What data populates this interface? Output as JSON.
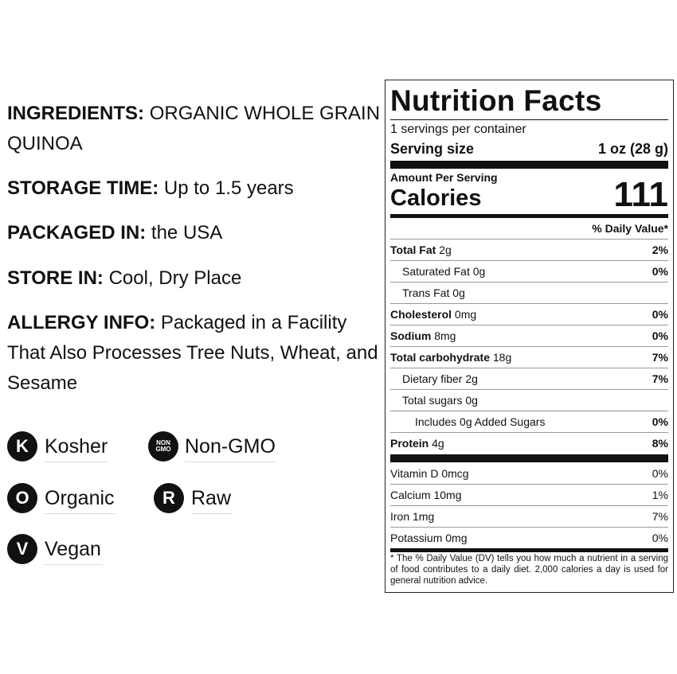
{
  "product_info": {
    "ingredients": {
      "label": "INGREDIENTS:",
      "value": "ORGANIC WHOLE GRAIN QUINOA"
    },
    "storage": {
      "label": "STORAGE TIME:",
      "value": "Up to 1.5 years"
    },
    "packaged": {
      "label": "PACKAGED IN:",
      "value": "the USA"
    },
    "store": {
      "label": "STORE IN:",
      "value": "Cool, Dry Place"
    },
    "allergy": {
      "label": "ALLERGY INFO:",
      "value": "Packaged in a Facility That Also Processes Tree Nuts, Wheat, and Sesame"
    }
  },
  "certifications": [
    {
      "badge": "K",
      "label": "Kosher",
      "icon": "kosher-icon"
    },
    {
      "badge_line1": "NON",
      "badge_line2": "GMO",
      "label": "Non-GMO",
      "icon": "non-gmo-icon"
    },
    {
      "badge": "O",
      "label": "Organic",
      "icon": "organic-icon"
    },
    {
      "badge": "R",
      "label": "Raw",
      "icon": "raw-icon"
    },
    {
      "badge": "V",
      "label": "Vegan",
      "icon": "vegan-icon"
    }
  ],
  "nutrition": {
    "title": "Nutrition Facts",
    "servings_per_container": "1 servings per container",
    "serving_size_label": "Serving size",
    "serving_size_value": "1 oz (28 g)",
    "amount_per_serving": "Amount Per Serving",
    "calories_label": "Calories",
    "calories_value": "111",
    "daily_value_header": "% Daily Value*",
    "rows": [
      {
        "name": "Total Fat",
        "amount": "2g",
        "dv": "2%"
      },
      {
        "name": "Saturated Fat",
        "amount": "0g",
        "dv": "0%"
      },
      {
        "name": "Trans Fat",
        "amount": "0g",
        "dv": ""
      },
      {
        "name": "Cholesterol",
        "amount": "0mg",
        "dv": "0%"
      },
      {
        "name": "Sodium",
        "amount": "8mg",
        "dv": "0%"
      },
      {
        "name": "Total carbohydrate",
        "amount": "18g",
        "dv": "7%"
      },
      {
        "name": "Dietary fiber",
        "amount": "2g",
        "dv": "7%"
      },
      {
        "name": "Total sugars",
        "amount": "0g",
        "dv": ""
      },
      {
        "name": "Includes 0g Added Sugars",
        "amount": "",
        "dv": "0%"
      },
      {
        "name": "Protein",
        "amount": "4g",
        "dv": "8%"
      }
    ],
    "vitamins": [
      {
        "name": "Vitamin D 0mcg",
        "dv": "0%"
      },
      {
        "name": "Calcium 10mg",
        "dv": "1%"
      },
      {
        "name": "Iron 1mg",
        "dv": "7%"
      },
      {
        "name": "Potassium 0mg",
        "dv": "0%"
      }
    ],
    "footnote": "* The % Daily Value (DV) tells you how much a nutrient in a serving of food contributes to a daily diet. 2,000 calories a day is used for general nutrition advice."
  }
}
